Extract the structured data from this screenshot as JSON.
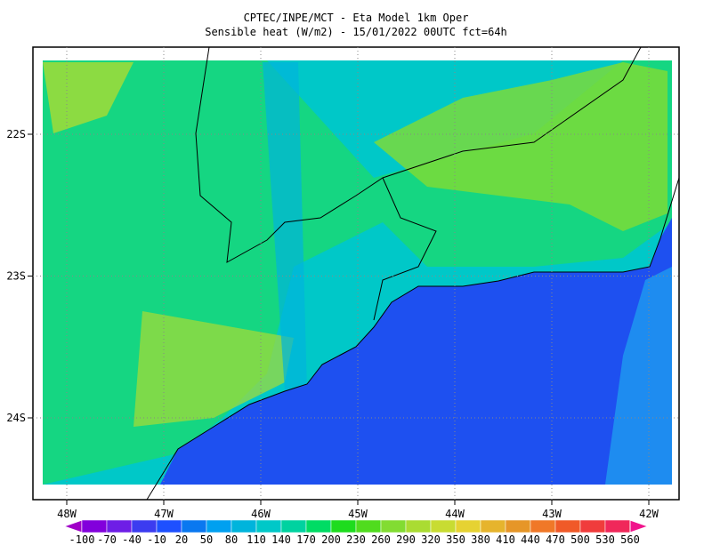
{
  "header": {
    "title": "CPTEC/INPE/MCT -  Eta Model 1km Oper",
    "subtitle": "Sensible heat (W/m2) - 15/01/2022 00UTC fct=64h"
  },
  "map": {
    "lon_labels": [
      "48W",
      "47W",
      "46W",
      "45W",
      "44W",
      "43W",
      "42W"
    ],
    "lat_labels": [
      "22S",
      "23S",
      "24S"
    ]
  },
  "colorbar": {
    "levels": [
      -100,
      -70,
      -40,
      -10,
      20,
      50,
      80,
      110,
      140,
      170,
      200,
      230,
      260,
      290,
      320,
      350,
      380,
      410,
      440,
      470,
      500,
      530,
      560
    ],
    "colors": [
      "#a000c8",
      "#8200dc",
      "#6e1ee6",
      "#3c3cf0",
      "#1e50ff",
      "#0a78f0",
      "#00a0f0",
      "#00b4dc",
      "#00c8c8",
      "#00d2a0",
      "#00dc64",
      "#1edc1e",
      "#50dc1e",
      "#82dc32",
      "#aadc32",
      "#c8dc32",
      "#e6d232",
      "#e6b42d",
      "#e69628",
      "#f07828",
      "#f05a28",
      "#f03c3c",
      "#f0285a",
      "#f0148c"
    ]
  }
}
